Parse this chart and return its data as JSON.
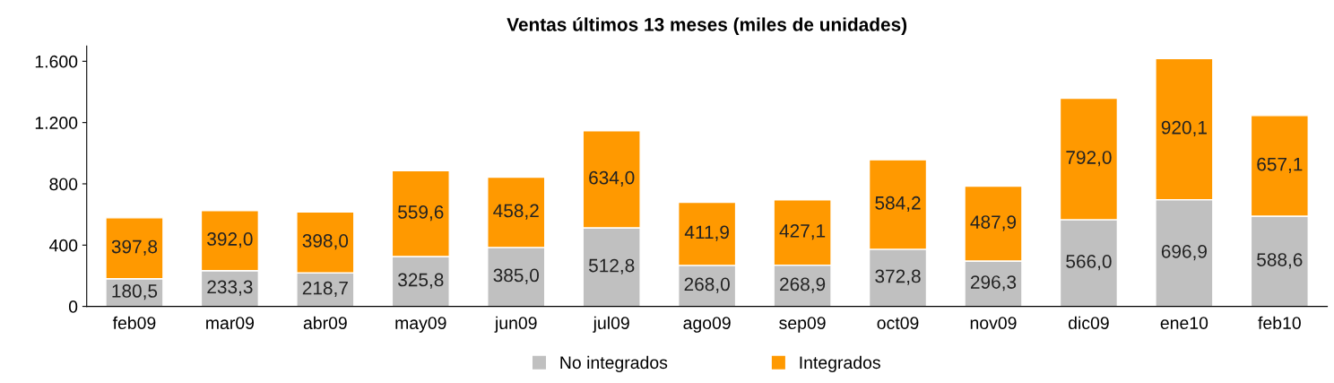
{
  "chart_data": {
    "type": "bar",
    "title": "Ventas últimos 13 meses (miles de unidades)",
    "stacked": true,
    "categories": [
      "feb09",
      "mar09",
      "abr09",
      "may09",
      "jun09",
      "jul09",
      "ago09",
      "sep09",
      "oct09",
      "nov09",
      "dic09",
      "ene10",
      "feb10"
    ],
    "series": [
      {
        "name": "No integrados",
        "color": "#c0c0c0",
        "values": [
          180.5,
          233.3,
          218.7,
          325.8,
          385.0,
          512.8,
          268.0,
          268.9,
          372.8,
          296.3,
          566.0,
          696.9,
          588.6
        ],
        "value_labels": [
          "180,5",
          "233,3",
          "218,7",
          "325,8",
          "385,0",
          "512,8",
          "268,0",
          "268,9",
          "372,8",
          "296,3",
          "566,0",
          "696,9",
          "588,6"
        ]
      },
      {
        "name": "Integrados",
        "color": "#ff9900",
        "values": [
          397.8,
          392.0,
          398.0,
          559.6,
          458.2,
          634.0,
          411.9,
          427.1,
          584.2,
          487.9,
          792.0,
          920.1,
          657.1
        ],
        "value_labels": [
          "397,8",
          "392,0",
          "398,0",
          "559,6",
          "458,2",
          "634,0",
          "411,9",
          "427,1",
          "584,2",
          "487,9",
          "792,0",
          "920,1",
          "657,1"
        ]
      }
    ],
    "ylim": [
      0,
      1700
    ],
    "yticks": [
      0,
      400,
      800,
      {
        "value": 1200,
        "label": "1.200"
      },
      {
        "value": 1600,
        "label": "1.600"
      }
    ],
    "grid": false,
    "legend": "bottom"
  }
}
